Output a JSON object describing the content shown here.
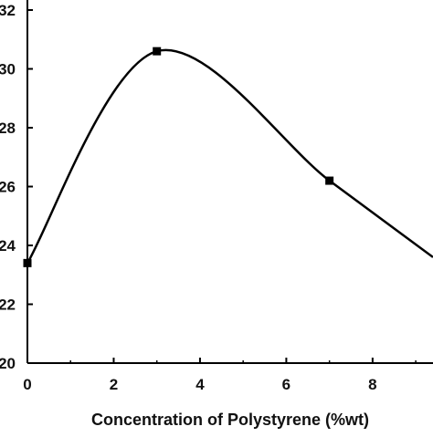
{
  "chart_data": {
    "type": "line",
    "title": "",
    "xlabel": "Concentration of Polystyrene (%wt)",
    "ylabel": "",
    "xlim": [
      0,
      9.4
    ],
    "ylim": [
      20,
      32
    ],
    "x_ticks": [
      0,
      2,
      4,
      6,
      8
    ],
    "x_tick_labels": [
      "0",
      "2",
      "4",
      "6",
      "8"
    ],
    "y_ticks": [
      20,
      22,
      24,
      26,
      28,
      30,
      32
    ],
    "y_tick_labels": [
      "20",
      "22",
      "24",
      "26",
      "28",
      "30",
      "32"
    ],
    "grid": false,
    "series": [
      {
        "color": "#000000",
        "marker": "square",
        "smooth": true,
        "x": [
          0,
          3,
          7,
          9.4
        ],
        "y": [
          23.4,
          30.6,
          26.2,
          23.6
        ]
      }
    ]
  }
}
